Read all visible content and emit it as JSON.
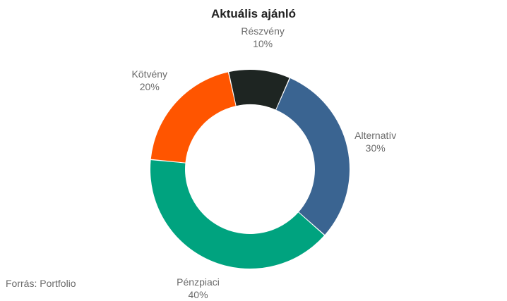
{
  "chart_data": {
    "type": "pie",
    "title": "Aktuális ajánló",
    "categories": [
      "Alternatív",
      "Pénzpiaci",
      "Kötvény",
      "Részvény"
    ],
    "values": [
      30,
      40,
      20,
      10
    ],
    "value_labels": [
      "30%",
      "40%",
      "20%",
      "10%"
    ],
    "colors": [
      "#3a6491",
      "#00a37f",
      "#ff5500",
      "#1e2522"
    ],
    "donut": true
  },
  "source": "Forrás: Portfolio"
}
